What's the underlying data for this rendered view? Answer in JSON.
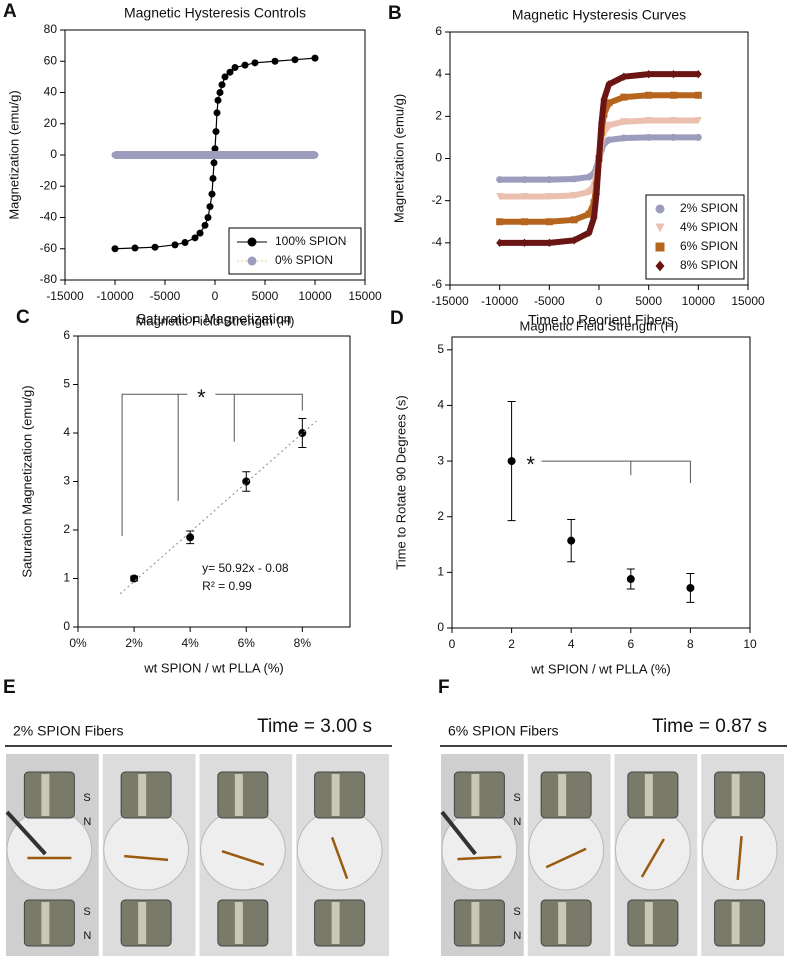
{
  "chart_data": [
    {
      "panel": "A",
      "type": "line",
      "title": "Magnetic Hysteresis Controls",
      "x_label": "Magnetic Field Strength (H)",
      "y_label": "Magnetization (emu/g)",
      "x": [
        -10000,
        -8000,
        -6000,
        -4000,
        -3000,
        -2000,
        -1500,
        -1000,
        -700,
        -500,
        -300,
        -200,
        -100,
        0,
        100,
        200,
        300,
        500,
        700,
        1000,
        1500,
        2000,
        3000,
        4000,
        6000,
        8000,
        10000
      ],
      "series": [
        {
          "name": "100% SPION",
          "color": "#000000",
          "marker": "circle",
          "line_width": 1.2,
          "values": [
            -60,
            -59.5,
            -59,
            -57.5,
            -56,
            -53,
            -50,
            -45,
            -40,
            -33,
            -25,
            -15,
            -5,
            4,
            15,
            27,
            35,
            40,
            45,
            50,
            53,
            56,
            57.5,
            59,
            60,
            61,
            62
          ]
        },
        {
          "name": "0% SPION",
          "color": "#9c9cbc",
          "marker": "circle",
          "line_width": 8,
          "values": [
            0,
            0,
            0,
            0,
            0,
            0,
            0,
            0,
            0,
            0,
            0,
            0,
            0,
            0,
            0,
            0,
            0,
            0,
            0,
            0,
            0,
            0,
            0,
            0,
            0,
            0,
            0
          ]
        }
      ],
      "xlim": [
        -15000,
        15000
      ],
      "xticks": [
        -15000,
        -10000,
        -5000,
        0,
        5000,
        10000,
        15000
      ],
      "ylim": [
        -80,
        80
      ],
      "yticks": [
        -80,
        -60,
        -40,
        -20,
        0,
        20,
        40,
        60,
        80
      ],
      "legend": "lower-right"
    },
    {
      "panel": "B",
      "type": "line",
      "title": "Magnetic Hysteresis Curves",
      "x_label": "Magnetic Field Strength (H)",
      "y_label": "Magnetization (emu/g)",
      "x": [
        -10000,
        -7500,
        -5000,
        -2500,
        -1000,
        -500,
        -250,
        0,
        250,
        500,
        1000,
        2500,
        5000,
        7500,
        10000
      ],
      "series": [
        {
          "name": "2% SPION",
          "color": "#9c9cbc",
          "marker": "circle",
          "line_width": 6,
          "values": [
            -1,
            -1,
            -1,
            -0.97,
            -0.88,
            -0.7,
            -0.42,
            0,
            0.42,
            0.7,
            0.88,
            0.97,
            1,
            1,
            1
          ]
        },
        {
          "name": "4% SPION",
          "color": "#ecc0b0",
          "marker": "triangle",
          "line_width": 6,
          "values": [
            -1.8,
            -1.8,
            -1.8,
            -1.75,
            -1.58,
            -1.26,
            -0.76,
            0,
            0.76,
            1.26,
            1.58,
            1.75,
            1.8,
            1.8,
            1.8
          ]
        },
        {
          "name": "6% SPION",
          "color": "#b5651d",
          "marker": "square",
          "line_width": 6,
          "values": [
            -3,
            -3,
            -3,
            -2.91,
            -2.64,
            -2.1,
            -1.26,
            0,
            1.26,
            2.1,
            2.64,
            2.91,
            3,
            3,
            3
          ]
        },
        {
          "name": "8% SPION",
          "color": "#6b1414",
          "marker": "diamond",
          "line_width": 6,
          "values": [
            -4,
            -4,
            -4,
            -3.88,
            -3.52,
            -2.8,
            -1.68,
            0,
            1.68,
            2.8,
            3.52,
            3.88,
            4,
            4,
            4
          ]
        }
      ],
      "xlim": [
        -15000,
        15000
      ],
      "xticks": [
        -15000,
        -10000,
        -5000,
        0,
        5000,
        10000,
        15000
      ],
      "ylim": [
        -6,
        6
      ],
      "yticks": [
        -6,
        -4,
        -2,
        0,
        2,
        4,
        6
      ],
      "legend": "lower-right"
    },
    {
      "panel": "C",
      "type": "scatter",
      "title": "Saturation Magnetization",
      "x_label": "wt SPION / wt PLLA (%)",
      "y_label": "Saturation Magnetization (emu/g)",
      "x": [
        0.02,
        0.04,
        0.06,
        0.08
      ],
      "values": [
        1.0,
        1.85,
        3.0,
        4.0
      ],
      "errors": [
        0.05,
        0.13,
        0.2,
        0.3
      ],
      "color": "#000000",
      "trendline": {
        "slope": 50.92,
        "intercept": -0.08
      },
      "annotations": [
        "y= 50.92x - 0.08",
        "R² = 0.99"
      ],
      "significance": "*",
      "xlim": [
        0,
        0.097
      ],
      "xticks": [
        {
          "value": 0,
          "label": "0%"
        },
        {
          "value": 0.02,
          "label": "2%"
        },
        {
          "value": 0.04,
          "label": "4%"
        },
        {
          "value": 0.06,
          "label": "6%"
        },
        {
          "value": 0.08,
          "label": "8%"
        }
      ],
      "ylim": [
        0,
        6
      ],
      "yticks": [
        0,
        1,
        2,
        3,
        4,
        5,
        6
      ]
    },
    {
      "panel": "D",
      "type": "scatter",
      "title": "Time to Reorient Fibers",
      "x_label": "wt SPION / wt PLLA (%)",
      "y_label": "Time to Rotate 90 Degrees (s)",
      "x": [
        2,
        4,
        6,
        8
      ],
      "values": [
        3.0,
        1.57,
        0.88,
        0.72
      ],
      "errors": [
        1.07,
        0.38,
        0.18,
        0.26
      ],
      "color": "#000000",
      "significance": "*",
      "xlim": [
        0,
        10
      ],
      "xticks": [
        0,
        2,
        4,
        6,
        8,
        10
      ],
      "ylim": [
        0,
        5.23
      ],
      "yticks": [
        0,
        1,
        2,
        3,
        4,
        5
      ]
    }
  ],
  "photo_panels": [
    {
      "panel": "E",
      "caption": "2% SPION Fibers",
      "time": "Time = 3.00 s",
      "poles": [
        "S",
        "N",
        "S",
        "N"
      ]
    },
    {
      "panel": "F",
      "caption": "6% SPION Fibers",
      "time": "Time = 0.87 s",
      "poles": [
        "S",
        "N",
        "S",
        "N"
      ]
    }
  ]
}
